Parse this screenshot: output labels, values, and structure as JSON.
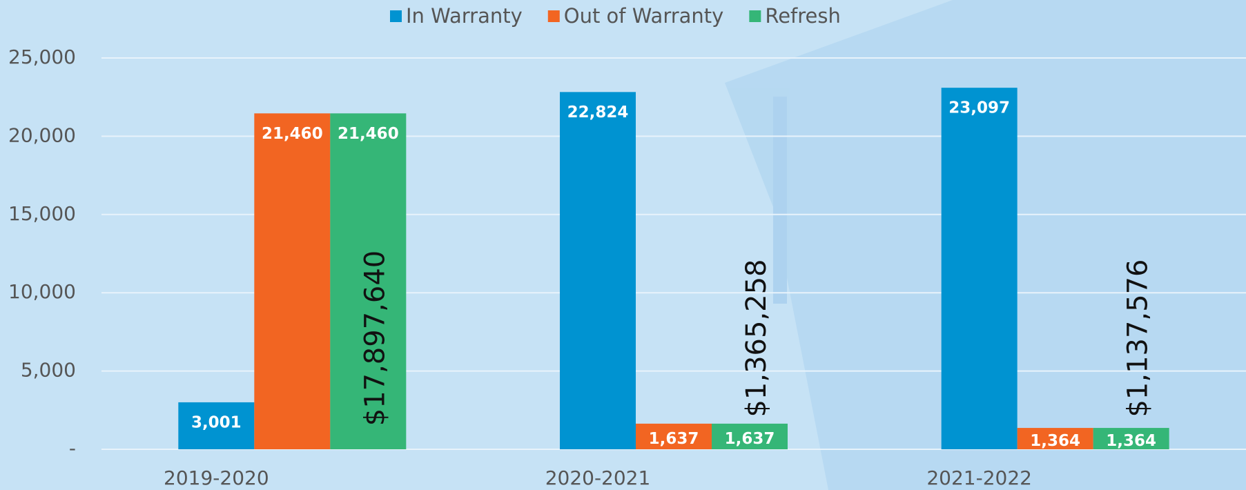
{
  "chart_data": {
    "type": "bar",
    "categories": [
      "2019-2020",
      "2020-2021",
      "2021-2022"
    ],
    "series": [
      {
        "name": "In Warranty",
        "color": "#0093d1",
        "values": [
          3001,
          22824,
          23097
        ],
        "value_labels": [
          "3,001",
          "22,824",
          "23,097"
        ]
      },
      {
        "name": "Out of Warranty",
        "color": "#f26522",
        "values": [
          21460,
          1637,
          1364
        ],
        "value_labels": [
          "21,460",
          "1,637",
          "1,364"
        ]
      },
      {
        "name": "Refresh",
        "color": "#35b677",
        "values": [
          21460,
          1637,
          1364
        ],
        "value_labels": [
          "21,460",
          "1,637",
          "1,364"
        ]
      }
    ],
    "annotations": [
      "$17,897,640",
      "$1,365,258",
      "$1,137,576"
    ],
    "ylim": [
      0,
      25000
    ],
    "yticks": [
      {
        "value": 0,
        "label": "-"
      },
      {
        "value": 5000,
        "label": "5,000"
      },
      {
        "value": 10000,
        "label": "10,000"
      },
      {
        "value": 15000,
        "label": "15,000"
      },
      {
        "value": 20000,
        "label": "20,000"
      },
      {
        "value": 25000,
        "label": "25,000"
      }
    ],
    "grid": true,
    "legend": "top"
  }
}
